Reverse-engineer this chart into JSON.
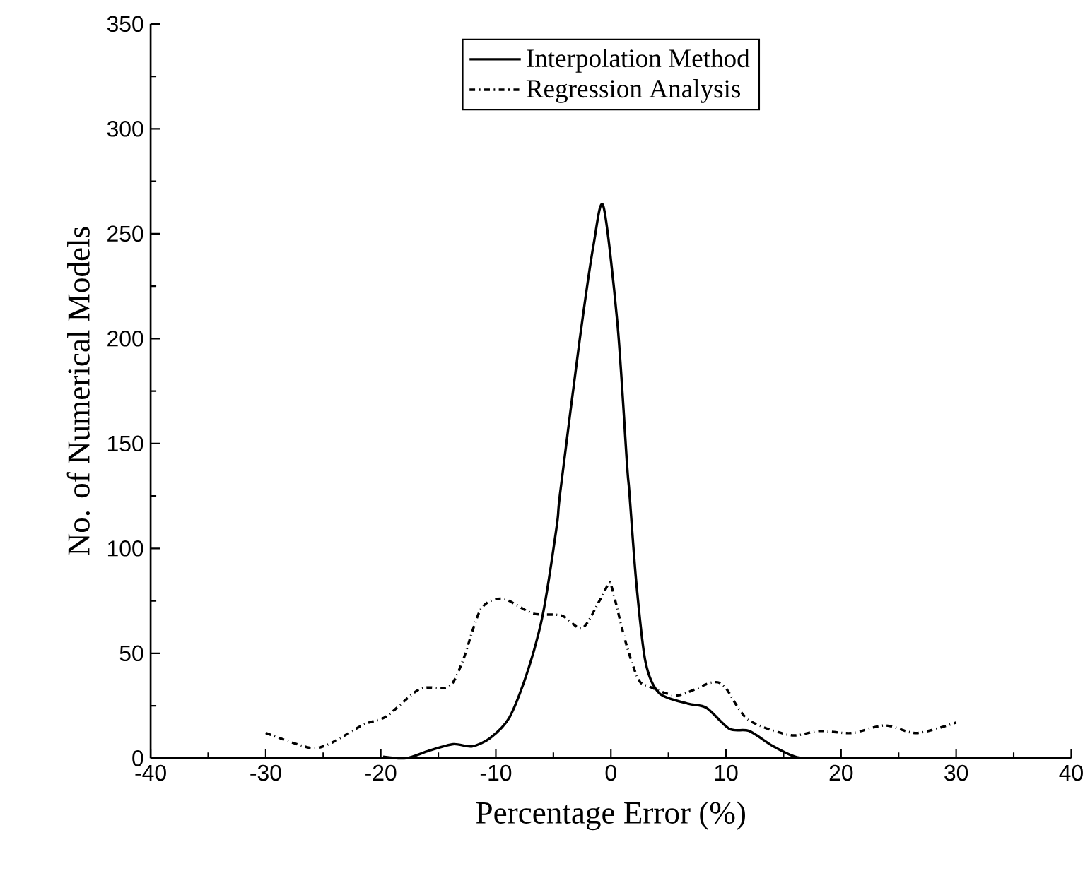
{
  "chart_data": {
    "type": "line",
    "xlabel": "Percentage Error (%)",
    "ylabel": "No. of Numerical Models",
    "xlim": [
      -40,
      40
    ],
    "xticks": [
      -40,
      -30,
      -20,
      -10,
      0,
      10,
      20,
      30,
      40
    ],
    "ylim": [
      0,
      350
    ],
    "yticks": [
      0,
      50,
      100,
      150,
      200,
      250,
      300,
      350
    ],
    "grid": false,
    "legend": "top",
    "marker": "none",
    "series": [
      {
        "name": "Interpolation Method",
        "color": "#000000",
        "line_style": "solid",
        "x": [
          -19.8,
          -17.8,
          -15.8,
          -13.7,
          -12.1,
          -10.5,
          -8.8,
          -7.2,
          -5.9,
          -4.7,
          -4.4,
          -2.7,
          -1.5,
          -0.65,
          0.57,
          1.4,
          1.6,
          2.2,
          3.0,
          4.2,
          6.7,
          8.3,
          10.3,
          12.0,
          14.0,
          16.0,
          17.3
        ],
        "values": [
          0.7,
          0,
          3.6,
          6.7,
          5.6,
          9.6,
          19.6,
          42,
          69,
          111,
          127,
          200,
          245,
          263,
          207,
          140,
          127,
          84,
          46,
          31,
          26,
          24,
          14,
          13,
          6,
          0.7,
          0
        ]
      },
      {
        "name": "Regression Analysis",
        "color": "#000000",
        "line_style": "dashdot",
        "x": [
          -30,
          -26.2,
          -24.4,
          -21.5,
          -19.5,
          -16.6,
          -14.1,
          -12.9,
          -11.3,
          -9.4,
          -6.8,
          -4.3,
          -2.5,
          -1.0,
          -0.2,
          0.1,
          1.3,
          2.4,
          3.4,
          5.8,
          8.7,
          9.9,
          11.9,
          15.6,
          18.1,
          20.9,
          23.8,
          26.6,
          30
        ],
        "values": [
          12,
          5,
          7,
          16,
          20,
          33,
          34,
          46,
          71,
          76,
          69,
          68,
          62,
          75,
          83,
          81,
          55,
          37.5,
          34,
          30,
          36,
          34,
          18.5,
          11,
          13,
          12,
          15.6,
          12,
          17
        ]
      }
    ]
  }
}
